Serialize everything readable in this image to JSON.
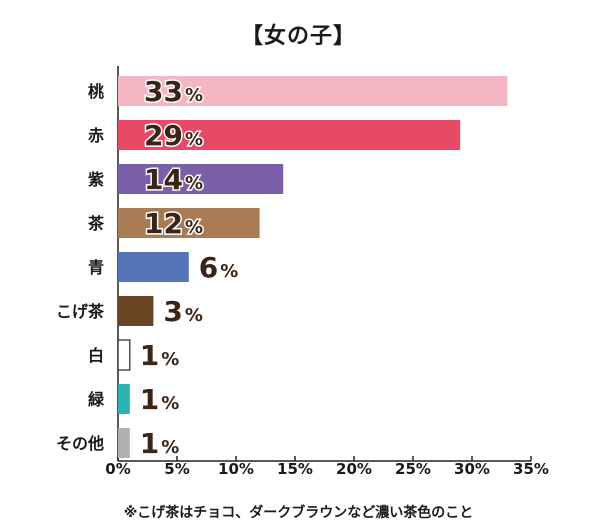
{
  "chart_data": {
    "type": "bar",
    "orientation": "horizontal",
    "title": "【女の子】",
    "categories": [
      "桃",
      "赤",
      "紫",
      "茶",
      "青",
      "こげ茶",
      "白",
      "緑",
      "その他"
    ],
    "values": [
      33,
      29,
      14,
      12,
      6,
      3,
      1,
      1,
      1
    ],
    "value_labels": [
      "33",
      "29",
      "14",
      "12",
      "6",
      "3",
      "1",
      "1",
      "1"
    ],
    "value_unit": "%",
    "bar_colors": [
      "#f4b6c2",
      "#e64a67",
      "#7b5fa8",
      "#a87b54",
      "#5574b8",
      "#6b4423",
      "#ffffff",
      "#2ab3b0",
      "#b0b0b0"
    ],
    "xlim": [
      0,
      35
    ],
    "xticks": [
      "0%",
      "5%",
      "10%",
      "15%",
      "20%",
      "25%",
      "30%",
      "35%"
    ],
    "tick_values": [
      0,
      5,
      10,
      15,
      20,
      25,
      30,
      35
    ],
    "grid": false,
    "note": "※こげ茶はチョコ、ダークブラウンなど濃い茶色のこと"
  }
}
